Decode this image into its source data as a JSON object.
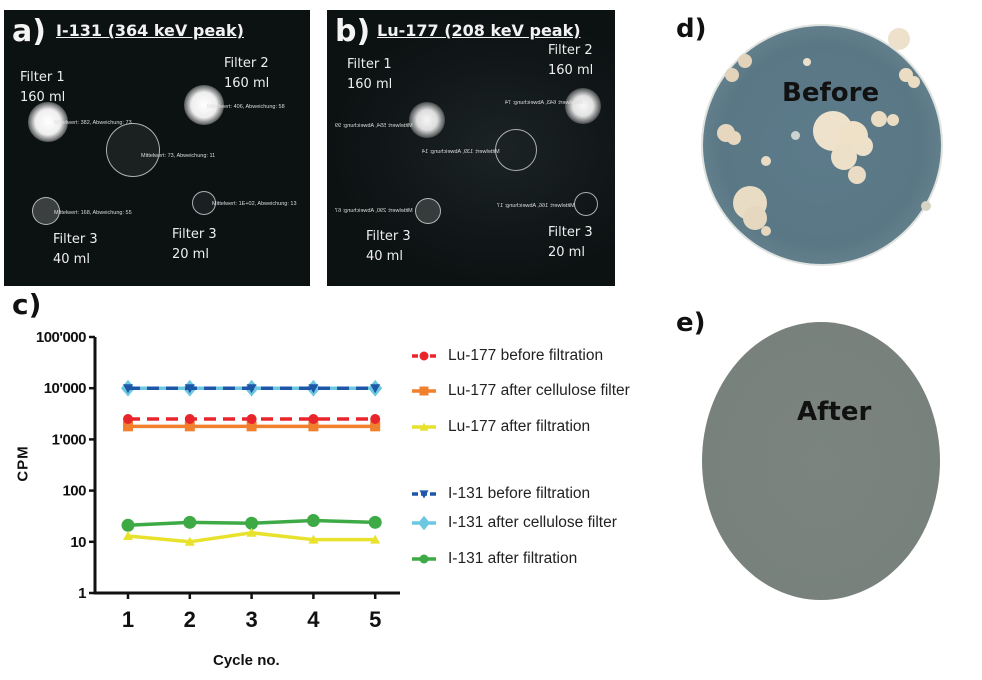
{
  "panels": {
    "a": {
      "label": "a)",
      "title": "I-131 (364 keV peak)",
      "filters": [
        {
          "name": "Filter 1",
          "volume": "160 ml"
        },
        {
          "name": "Filter 2",
          "volume": "160 ml"
        },
        {
          "name": "Filter 3",
          "volume": "40 ml"
        },
        {
          "name": "Filter 3",
          "volume": "20 ml"
        }
      ],
      "annotations": [
        "Mittelwert: 382, Abweichung: 73",
        "Mittelwert: 406, Abweichung: 58",
        "Mittelwert: 73, Abweichung: 11",
        "Mittelwert: 168, Abweichung: 55",
        "Mittelwert: 1E+02, Abweichung: 13"
      ]
    },
    "b": {
      "label": "b)",
      "title": "Lu-177 (208 keV peak)",
      "filters": [
        {
          "name": "Filter 1",
          "volume": "160 ml"
        },
        {
          "name": "Filter 2",
          "volume": "160 ml"
        },
        {
          "name": "Filter 3",
          "volume": "40 ml"
        },
        {
          "name": "Filter 3",
          "volume": "20 ml"
        }
      ],
      "annotations": [
        "Mittelwert: 554, Abweichung: 99",
        "Mittelwert: 643, Abweichung: 74",
        "Mittelwert: 139, Abweichung: 14",
        "Mittelwert: 290, Abweichung: 67",
        "Mittelwert: 166, Abweichung: 17"
      ]
    },
    "c": {
      "label": "c)"
    },
    "d": {
      "label": "d)",
      "caption": "Before"
    },
    "e": {
      "label": "e)",
      "caption": "After"
    }
  },
  "chart_data": {
    "type": "line",
    "title": "",
    "xlabel": "Cycle no.",
    "ylabel": "CPM",
    "yscale": "log",
    "ylim": [
      1,
      100000
    ],
    "yticks": [
      "1",
      "10",
      "100",
      "1'000",
      "10'000",
      "100'000"
    ],
    "x": [
      1,
      2,
      3,
      4,
      5
    ],
    "xticks": [
      "1",
      "2",
      "3",
      "4",
      "5"
    ],
    "grid": false,
    "legend_position": "right",
    "series": [
      {
        "name": "Lu-177 before filtration",
        "color": "#e8252b",
        "marker": "circle",
        "dash": "dashed",
        "values": [
          2500,
          2500,
          2500,
          2500,
          2500
        ]
      },
      {
        "name": "Lu-177 after cellulose filter",
        "color": "#f07f2e",
        "marker": "square",
        "dash": "solid",
        "values": [
          1800,
          1800,
          1800,
          1800,
          1800
        ]
      },
      {
        "name": "Lu-177 after filtration",
        "color": "#e8e22c",
        "marker": "triangle-up",
        "dash": "solid",
        "values": [
          13,
          10,
          15,
          11,
          11
        ]
      },
      {
        "name": "I-131 before filtration",
        "color": "#1e56a8",
        "marker": "triangle-down",
        "dash": "dashed",
        "values": [
          10000,
          10000,
          10000,
          10000,
          10000
        ]
      },
      {
        "name": "I-131 after cellulose filter",
        "color": "#6cc8e0",
        "marker": "diamond",
        "dash": "solid",
        "values": [
          10000,
          10000,
          10000,
          10000,
          10000
        ]
      },
      {
        "name": "I-131 after filtration",
        "color": "#3eaa45",
        "marker": "circle",
        "dash": "solid",
        "values": [
          21,
          24,
          23,
          26,
          24
        ]
      }
    ]
  }
}
